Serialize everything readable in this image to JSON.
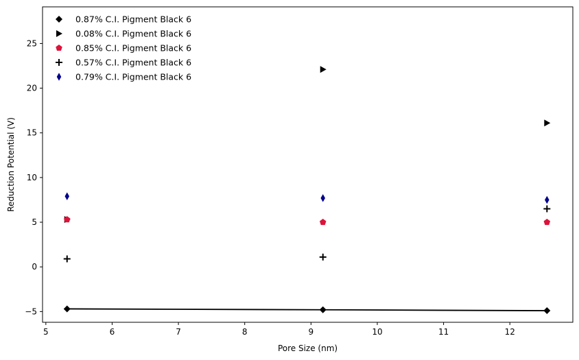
{
  "chart_data": {
    "type": "scatter",
    "title": "",
    "xlabel": "Pore Size (nm)",
    "ylabel": "Reduction Potential (V)",
    "xlim": [
      4.95,
      12.95
    ],
    "ylim": [
      -6.2,
      29.1
    ],
    "xticks": [
      5,
      6,
      7,
      8,
      9,
      10,
      11,
      12
    ],
    "yticks": [
      -5,
      0,
      5,
      10,
      15,
      20,
      25
    ],
    "grid": false,
    "legend_position": "top-left",
    "series": [
      {
        "name": "0.87% C.I. Pigment Black 6",
        "marker": "diamond",
        "color": "#000000",
        "line": true,
        "x": [
          5.32,
          9.18,
          12.56
        ],
        "y": [
          -4.7,
          -4.8,
          -4.9
        ]
      },
      {
        "name": "0.08% C.I. Pigment Black 6",
        "marker": "triangle-right",
        "color": "#000000",
        "line": false,
        "x": [
          5.32,
          9.18,
          12.56
        ],
        "y": [
          5.3,
          22.1,
          16.1
        ]
      },
      {
        "name": "0.85% C.I. Pigment Black 6",
        "marker": "pentagon",
        "color": "#dc143c",
        "line": false,
        "x": [
          5.32,
          9.18,
          12.56
        ],
        "y": [
          5.3,
          5.0,
          5.0
        ]
      },
      {
        "name": "0.57% C.I. Pigment Black 6",
        "marker": "plus",
        "color": "#000000",
        "line": false,
        "x": [
          5.32,
          9.18,
          12.56
        ],
        "y": [
          0.9,
          1.1,
          6.5
        ]
      },
      {
        "name": "0.79% C.I. Pigment Black 6",
        "marker": "thin-diamond",
        "color": "#00008b",
        "line": false,
        "x": [
          5.32,
          9.18,
          12.56
        ],
        "y": [
          7.9,
          7.7,
          7.5
        ]
      }
    ]
  }
}
